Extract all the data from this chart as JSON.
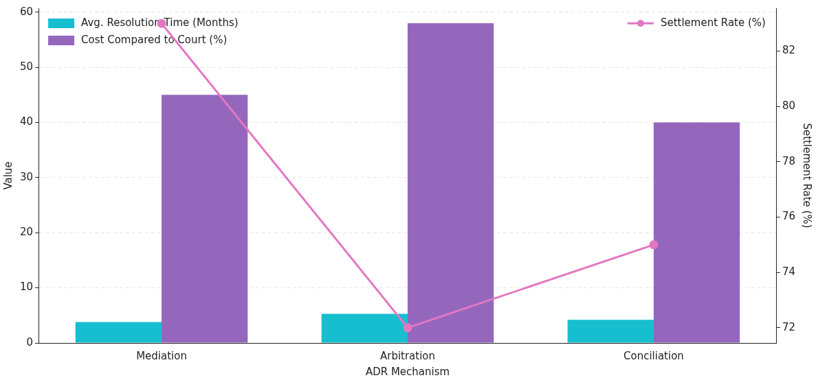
{
  "chart_data": {
    "type": "bar",
    "xlabel": "ADR Mechanism",
    "ylabel": "Value",
    "y2label": "Settlement Rate (%)",
    "categories": [
      "Mediation",
      "Arbitration",
      "Conciliation"
    ],
    "series": [
      {
        "name": "Avg. Resolution Time (Months)",
        "color": "#17becf",
        "values": [
          3.8,
          5.3,
          4.2
        ]
      },
      {
        "name": "Cost Compared to Court (%)",
        "color": "#9467bd",
        "values": [
          45,
          58,
          40
        ]
      },
      {
        "name": "Settlement Rate (%)",
        "type": "line",
        "axis": "y2",
        "color": "#e377c2",
        "values": [
          83,
          72,
          75
        ]
      }
    ],
    "ylim": [
      0,
      60.7
    ],
    "yticks": [
      0,
      10,
      20,
      30,
      40,
      50,
      60
    ],
    "y2lim": [
      71.45,
      83.55
    ],
    "y2ticks": [
      72,
      74,
      76,
      78,
      80,
      82
    ],
    "grid": "y",
    "legend": "top",
    "marker": "circle"
  }
}
